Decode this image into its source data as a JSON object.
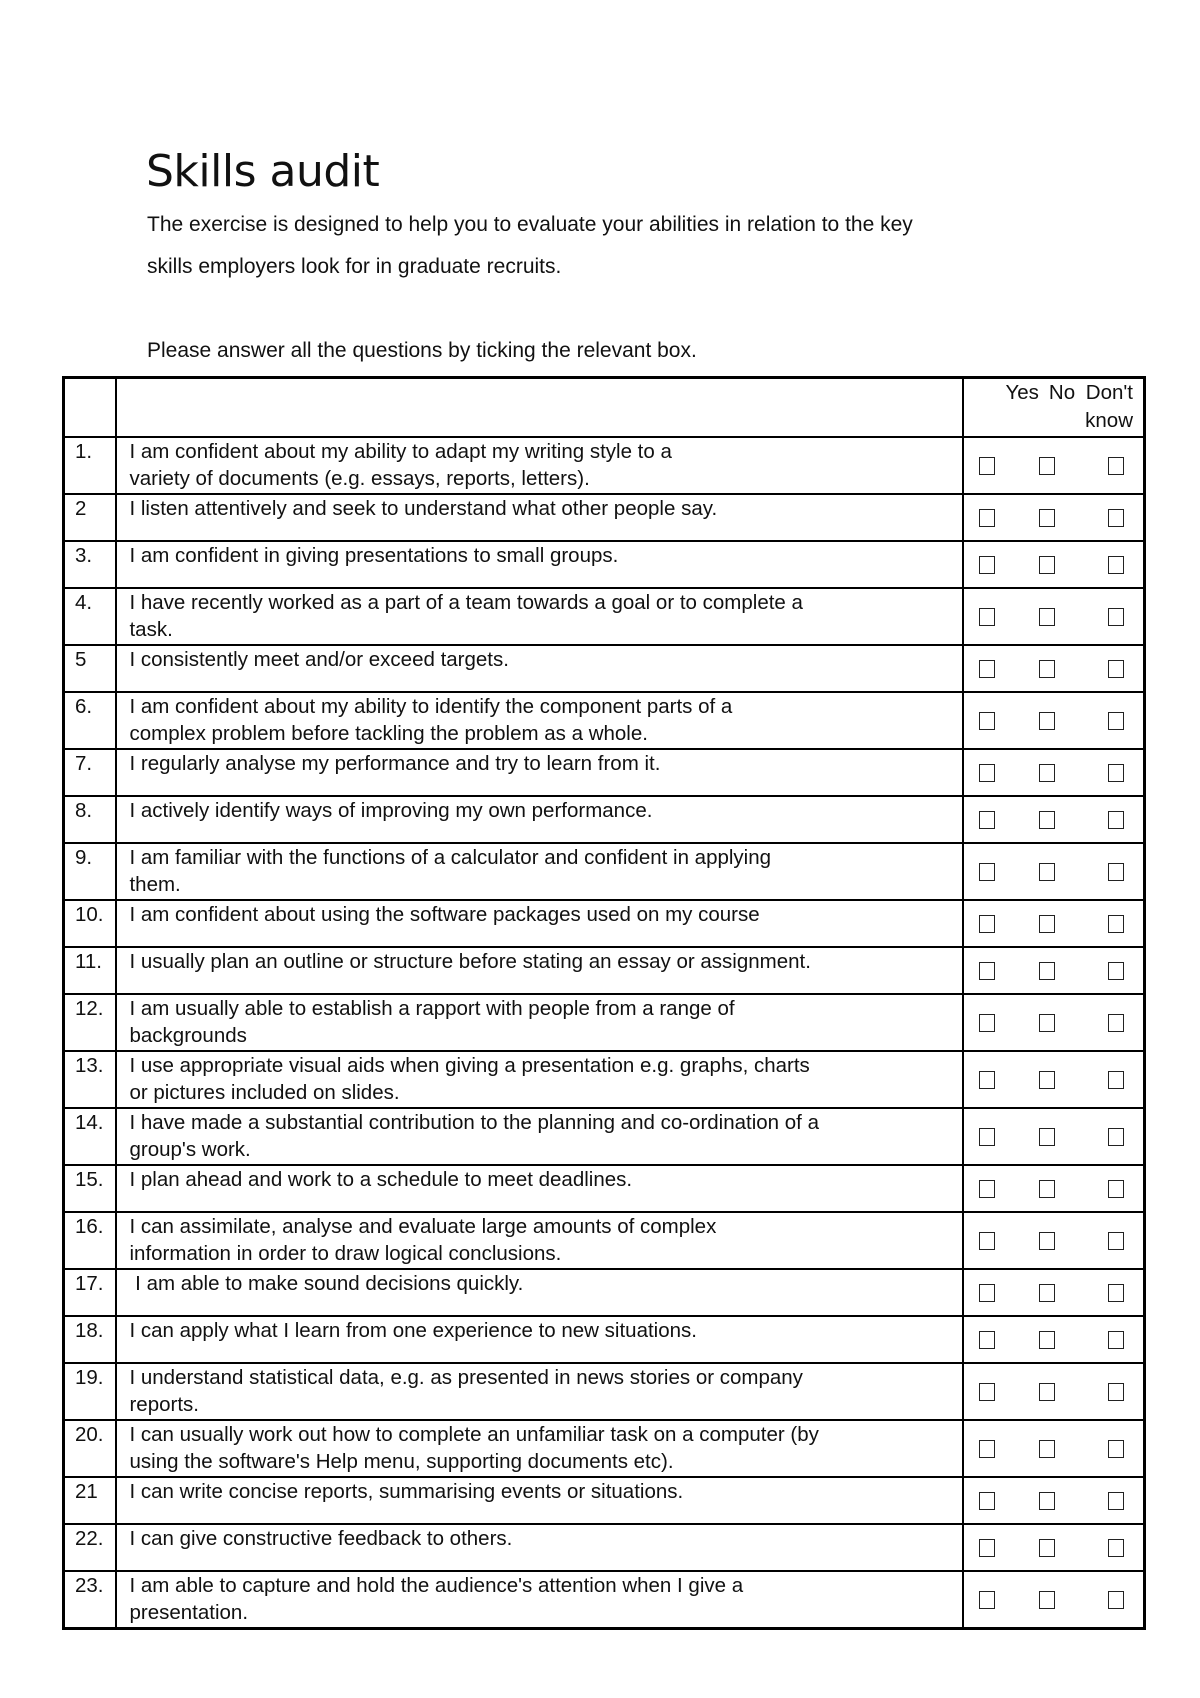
{
  "title": "Skills audit",
  "intro": "The exercise is designed to help you to evaluate your abilities in relation to the key\nskills employers look for in graduate recruits.",
  "instruction": "Please answer all the questions by ticking the relevant box.",
  "columns": {
    "yes": "Yes",
    "no": "No",
    "dont_know_1": "Don't",
    "dont_know_2": "know"
  },
  "questions": [
    {
      "num": "1.",
      "text": "I am confident about my ability to adapt my writing style to a\nvariety of documents (e.g. essays, reports, letters)."
    },
    {
      "num": "2",
      "text": "I listen attentively and seek to understand what other people say."
    },
    {
      "num": "3.",
      "text": "I am confident in giving presentations to small groups."
    },
    {
      "num": "4.",
      "text": "I have recently worked as a part of a team towards a goal or to complete a\ntask."
    },
    {
      "num": "5",
      "text": "I consistently meet and/or exceed targets."
    },
    {
      "num": "6.",
      "text": "I am confident about my ability to identify the component parts of a\ncomplex problem before tackling the problem as a whole."
    },
    {
      "num": "7.",
      "text": "I regularly analyse my performance and try to learn from it."
    },
    {
      "num": "8.",
      "text": "I actively identify ways of improving my own performance."
    },
    {
      "num": "9.",
      "text": "I am familiar with the functions of a calculator and confident in applying\nthem."
    },
    {
      "num": "10.",
      "text": "I am confident about using the software packages used on my course"
    },
    {
      "num": "11.",
      "text": "I usually plan an outline or structure before stating an essay or assignment."
    },
    {
      "num": "12.",
      "text": "I am usually able to establish a rapport with people from a range of\nbackgrounds"
    },
    {
      "num": "13.",
      "text": "I use appropriate visual aids when giving a presentation e.g. graphs, charts\nor pictures included on slides."
    },
    {
      "num": "14.",
      "text": "I have made a substantial contribution to the planning and co-ordination of a\ngroup's work."
    },
    {
      "num": "15.",
      "text": "I plan ahead and work to a schedule to meet deadlines."
    },
    {
      "num": "16.",
      "text": "I can assimilate, analyse and evaluate large amounts of complex\ninformation in order to draw logical conclusions."
    },
    {
      "num": "17.",
      "text": " I am able to make sound decisions quickly."
    },
    {
      "num": "18.",
      "text": "I can apply what I learn from one experience to new situations."
    },
    {
      "num": "19.",
      "text": "I understand statistical data, e.g. as presented in news stories or company\nreports."
    },
    {
      "num": "20.",
      "text": "I can usually work out how to complete an unfamiliar task on a computer (by\nusing the software's Help menu, supporting documents etc)."
    },
    {
      "num": "21",
      "text": "I can write concise reports, summarising events or situations."
    },
    {
      "num": "22.",
      "text": "I can give constructive feedback to others."
    },
    {
      "num": "23.",
      "text": "I am able to capture and hold the audience's attention when I give a\npresentation."
    }
  ]
}
